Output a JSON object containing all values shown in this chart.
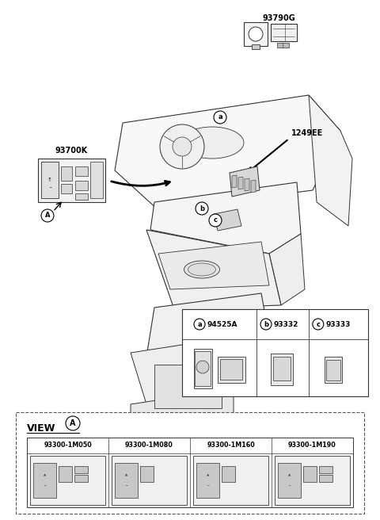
{
  "bg_color": "#ffffff",
  "part_numbers": [
    "93300-1M050",
    "93300-1M080",
    "93300-1M160",
    "93300-1M190"
  ],
  "callout_labels": [
    [
      "a",
      "94525A"
    ],
    [
      "b",
      "93332"
    ],
    [
      "c",
      "93333"
    ]
  ],
  "label_93790G": "93790G",
  "label_1249EE": "1249EE",
  "label_93700K": "93700K",
  "view_label": "VIEW",
  "lc": "#333333",
  "lw": 0.7
}
